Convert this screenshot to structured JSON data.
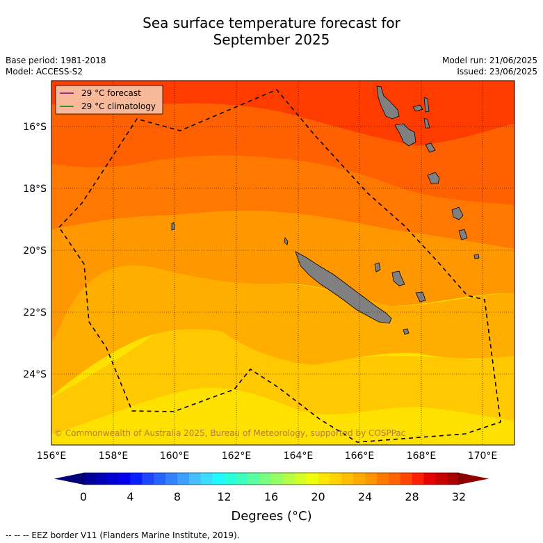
{
  "title_line1": "Sea surface temperature forecast for",
  "title_line2": "September 2025",
  "base_period": "Base period: 1981-2018",
  "model": "Model: ACCESS-S2",
  "model_run": "Model run: 21/06/2025",
  "issued": "Issued: 23/06/2025",
  "legend": {
    "forecast_label": "29 °C  forecast",
    "forecast_color": "#800080",
    "climatology_label": "29 °C  climatology",
    "climatology_color": "#008000"
  },
  "lat_labels": [
    "16°S",
    "18°S",
    "20°S",
    "22°S",
    "24°S"
  ],
  "lon_labels": [
    "156°E",
    "158°E",
    "160°E",
    "162°E",
    "164°E",
    "166°E",
    "168°E",
    "170°E"
  ],
  "copyright": "© Commonwealth of Australia 2025, Bureau of Meteorology, supported by COSPPac",
  "colorbar": {
    "ticks": [
      "0",
      "4",
      "8",
      "12",
      "16",
      "20",
      "24",
      "28",
      "32"
    ],
    "label": "Degrees (°C)",
    "colors": [
      "#000096",
      "#0000b4",
      "#0000d2",
      "#0000f0",
      "#0a1eff",
      "#1e46ff",
      "#2864ff",
      "#3282ff",
      "#3ca0ff",
      "#46beff",
      "#3cdcff",
      "#1efaff",
      "#28ffdc",
      "#3cffbe",
      "#5affa0",
      "#78ff82",
      "#96ff64",
      "#b4ff46",
      "#d2ff28",
      "#f0ff0a",
      "#ffe600",
      "#ffd200",
      "#ffbe00",
      "#ffaa00",
      "#ff9600",
      "#ff7800",
      "#ff6400",
      "#ff4600",
      "#ff1e00",
      "#e60000",
      "#c80000",
      "#aa0000"
    ],
    "under_color": "#000078",
    "over_color": "#8c0000"
  },
  "footer": "--  --  -- EEZ border V11 (Flanders Marine Institute, 2019)."
}
